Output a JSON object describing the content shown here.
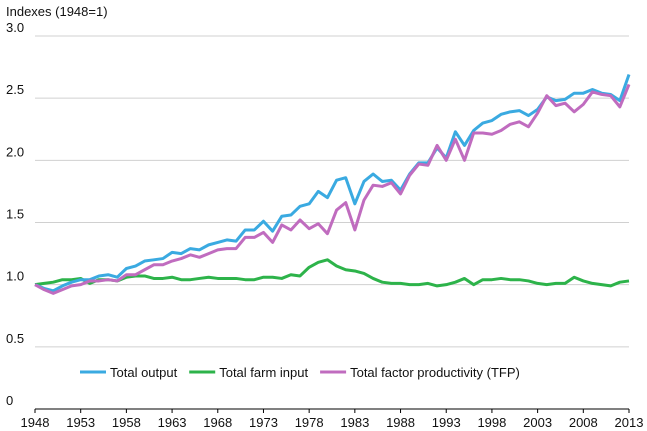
{
  "chart_data": {
    "type": "line",
    "y_axis_label": "Indexes (1948=1)",
    "x": [
      1948,
      1949,
      1950,
      1951,
      1952,
      1953,
      1954,
      1955,
      1956,
      1957,
      1958,
      1959,
      1960,
      1961,
      1962,
      1963,
      1964,
      1965,
      1966,
      1967,
      1968,
      1969,
      1970,
      1971,
      1972,
      1973,
      1974,
      1975,
      1976,
      1977,
      1978,
      1979,
      1980,
      1981,
      1982,
      1983,
      1984,
      1985,
      1986,
      1987,
      1988,
      1989,
      1990,
      1991,
      1992,
      1993,
      1994,
      1995,
      1996,
      1997,
      1998,
      1999,
      2000,
      2001,
      2002,
      2003,
      2004,
      2005,
      2006,
      2007,
      2008,
      2009,
      2010,
      2011,
      2012,
      2013
    ],
    "series": [
      {
        "name": "Total output",
        "color": "#3aaae1",
        "values": [
          1.0,
          0.97,
          0.95,
          0.99,
          1.02,
          1.04,
          1.04,
          1.07,
          1.08,
          1.06,
          1.13,
          1.15,
          1.19,
          1.2,
          1.21,
          1.26,
          1.25,
          1.29,
          1.28,
          1.32,
          1.34,
          1.36,
          1.35,
          1.44,
          1.44,
          1.51,
          1.43,
          1.55,
          1.56,
          1.63,
          1.65,
          1.75,
          1.7,
          1.84,
          1.86,
          1.65,
          1.83,
          1.89,
          1.83,
          1.84,
          1.76,
          1.89,
          1.98,
          1.98,
          2.1,
          2.02,
          2.23,
          2.12,
          2.24,
          2.3,
          2.32,
          2.37,
          2.39,
          2.4,
          2.36,
          2.41,
          2.51,
          2.48,
          2.49,
          2.54,
          2.54,
          2.57,
          2.54,
          2.53,
          2.48,
          2.69
        ]
      },
      {
        "name": "Total farm input",
        "color": "#2db34a",
        "values": [
          1.0,
          1.01,
          1.02,
          1.04,
          1.04,
          1.05,
          1.01,
          1.04,
          1.04,
          1.03,
          1.06,
          1.07,
          1.07,
          1.05,
          1.05,
          1.06,
          1.04,
          1.04,
          1.05,
          1.06,
          1.05,
          1.05,
          1.05,
          1.04,
          1.04,
          1.06,
          1.06,
          1.05,
          1.08,
          1.07,
          1.14,
          1.18,
          1.2,
          1.15,
          1.12,
          1.11,
          1.09,
          1.05,
          1.02,
          1.01,
          1.01,
          1.0,
          1.0,
          1.01,
          0.99,
          1.0,
          1.02,
          1.05,
          1.0,
          1.04,
          1.04,
          1.05,
          1.04,
          1.04,
          1.03,
          1.01,
          1.0,
          1.01,
          1.01,
          1.06,
          1.03,
          1.01,
          1.0,
          0.99,
          1.02,
          1.03
        ]
      },
      {
        "name": "Total factor productivity (TFP)",
        "color": "#c06cbf",
        "values": [
          1.0,
          0.96,
          0.93,
          0.96,
          0.99,
          1.0,
          1.03,
          1.03,
          1.04,
          1.03,
          1.08,
          1.08,
          1.12,
          1.16,
          1.16,
          1.19,
          1.21,
          1.24,
          1.22,
          1.25,
          1.28,
          1.29,
          1.29,
          1.38,
          1.38,
          1.42,
          1.34,
          1.48,
          1.44,
          1.52,
          1.45,
          1.49,
          1.41,
          1.6,
          1.66,
          1.44,
          1.68,
          1.8,
          1.79,
          1.82,
          1.73,
          1.88,
          1.97,
          1.96,
          2.12,
          2.0,
          2.17,
          2.0,
          2.22,
          2.22,
          2.21,
          2.24,
          2.29,
          2.31,
          2.27,
          2.38,
          2.52,
          2.44,
          2.46,
          2.39,
          2.45,
          2.55,
          2.53,
          2.52,
          2.43,
          2.61
        ]
      }
    ],
    "xlim": [
      1948,
      2013
    ],
    "xticks": [
      1948,
      1953,
      1958,
      1963,
      1968,
      1973,
      1978,
      1983,
      1988,
      1993,
      1998,
      2003,
      2008,
      2013
    ],
    "ylim": [
      0,
      3
    ],
    "yticks": [
      0,
      0.5,
      {
        "value": 1,
        "label": "1.0"
      },
      1.5,
      {
        "value": 2,
        "label": "2.0"
      },
      2.5,
      {
        "value": 3,
        "label": "3.0"
      }
    ],
    "grid": true,
    "legend": "bottom"
  }
}
